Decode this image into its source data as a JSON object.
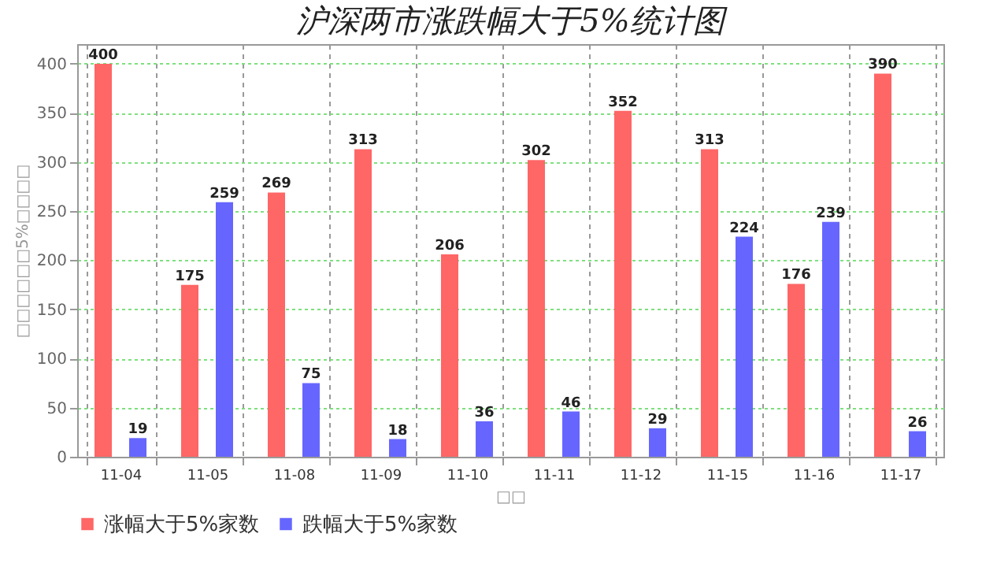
{
  "chart_data": {
    "type": "bar",
    "title": "沪深两市涨跌幅大于5%统计图",
    "xlabel": "□□",
    "ylabel": "□□□□□□5%□□□□",
    "categories": [
      "11-04",
      "11-05",
      "11-08",
      "11-09",
      "11-10",
      "11-11",
      "11-12",
      "11-15",
      "11-16",
      "11-17"
    ],
    "series": [
      {
        "name": "涨幅大于5%家数",
        "color": "#ff6666",
        "values": [
          400,
          175,
          269,
          313,
          206,
          302,
          352,
          313,
          176,
          390
        ]
      },
      {
        "name": "跌幅大于5%家数",
        "color": "#6666ff",
        "values": [
          19,
          259,
          75,
          18,
          36,
          46,
          29,
          224,
          239,
          26
        ]
      }
    ],
    "ylim": [
      0,
      420
    ],
    "yticks": [
      0,
      50,
      100,
      150,
      200,
      250,
      300,
      350,
      400
    ],
    "grid": true,
    "legend": "bottom",
    "data_labels": true
  }
}
